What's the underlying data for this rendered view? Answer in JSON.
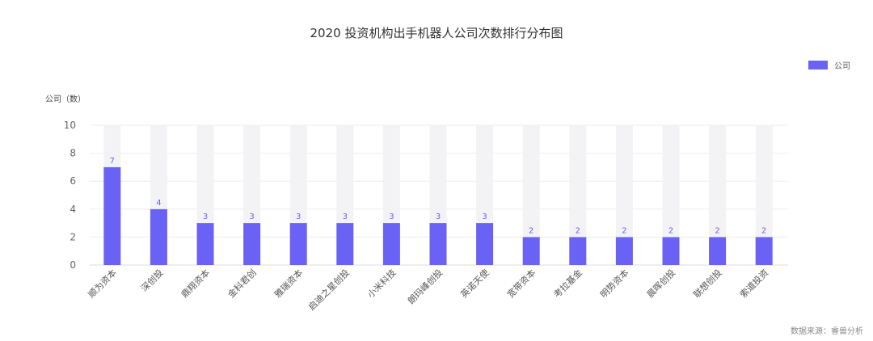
{
  "chart_data": {
    "type": "bar",
    "title": "2020 投资机构出手机器人公司次数排行分布图",
    "xlabel": "",
    "ylabel": "公司（数）",
    "ylim": [
      0,
      10
    ],
    "yticks": [
      0,
      2,
      4,
      6,
      8,
      10
    ],
    "grid": true,
    "legend_position": "top-right",
    "categories": [
      "顺为资本",
      "深创投",
      "鼎翔资本",
      "金科君创",
      "雅瑞资本",
      "启迪之星创投",
      "小米科技",
      "朗玛峰创投",
      "英诺天使",
      "宽带资本",
      "考拉基金",
      "明势资本",
      "晨晖创投",
      "联想创投",
      "索道投资"
    ],
    "series": [
      {
        "name": "公司",
        "color": "#6a62f4",
        "values": [
          7,
          4,
          3,
          3,
          3,
          3,
          3,
          3,
          3,
          2,
          2,
          2,
          2,
          2,
          2
        ]
      }
    ],
    "background_bar_max": 10,
    "data_labels": true
  },
  "legend": {
    "label": "公司",
    "color": "#6a62f4"
  },
  "source_note": "数据来源：睿兽分析",
  "colors": {
    "bar": "#6a62f4",
    "bar_bg": "#f3f3f5",
    "grid": "#eeeeee",
    "label": "#6a62f4"
  }
}
